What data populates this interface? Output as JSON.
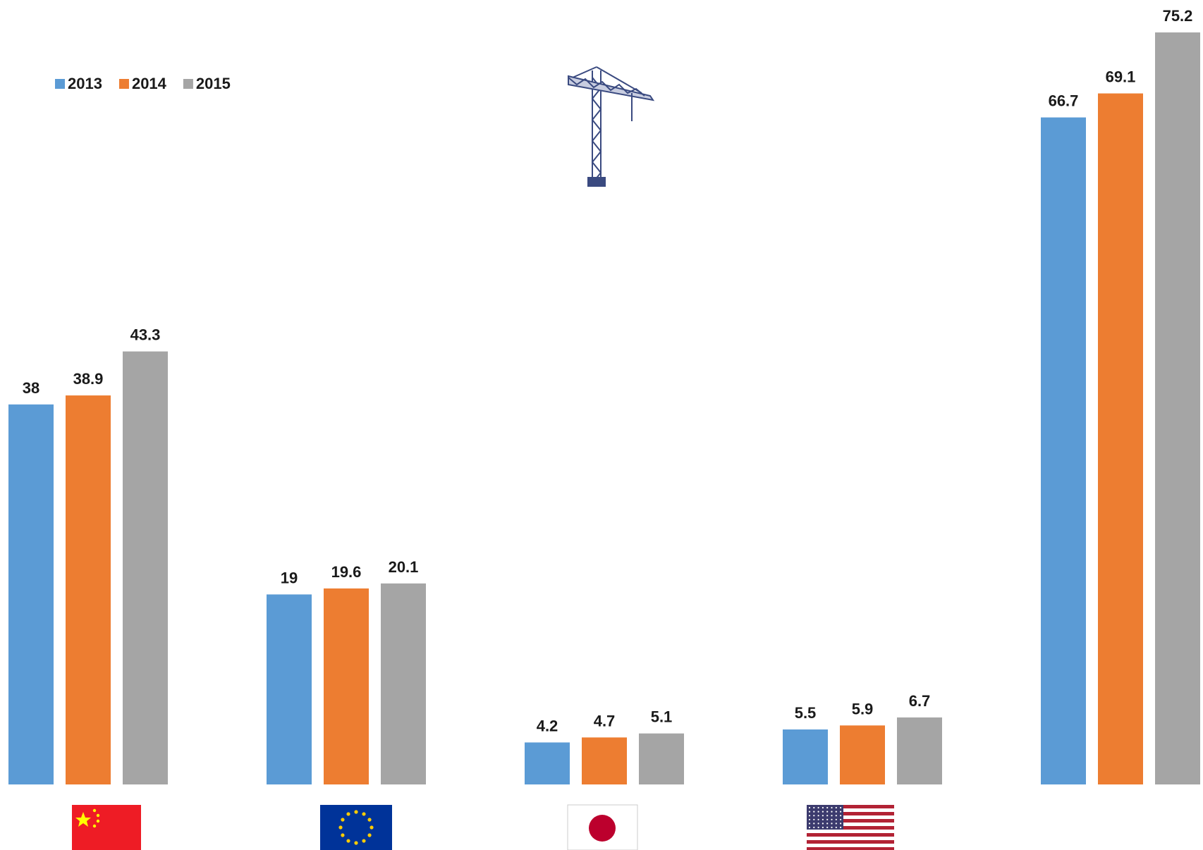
{
  "chart_data": {
    "type": "bar",
    "categories": [
      null,
      null,
      null,
      null,
      null
    ],
    "series": [
      {
        "name": "2013",
        "color": "#5b9bd5",
        "values": [
          38,
          19,
          4.2,
          5.5,
          66.7
        ]
      },
      {
        "name": "2014",
        "color": "#ed7d31",
        "values": [
          38.9,
          19.6,
          4.7,
          5.9,
          69.1
        ]
      },
      {
        "name": "2015",
        "color": "#a5a5a5",
        "values": [
          43.3,
          20.1,
          5.1,
          6.7,
          75.2
        ]
      }
    ]
  }
}
